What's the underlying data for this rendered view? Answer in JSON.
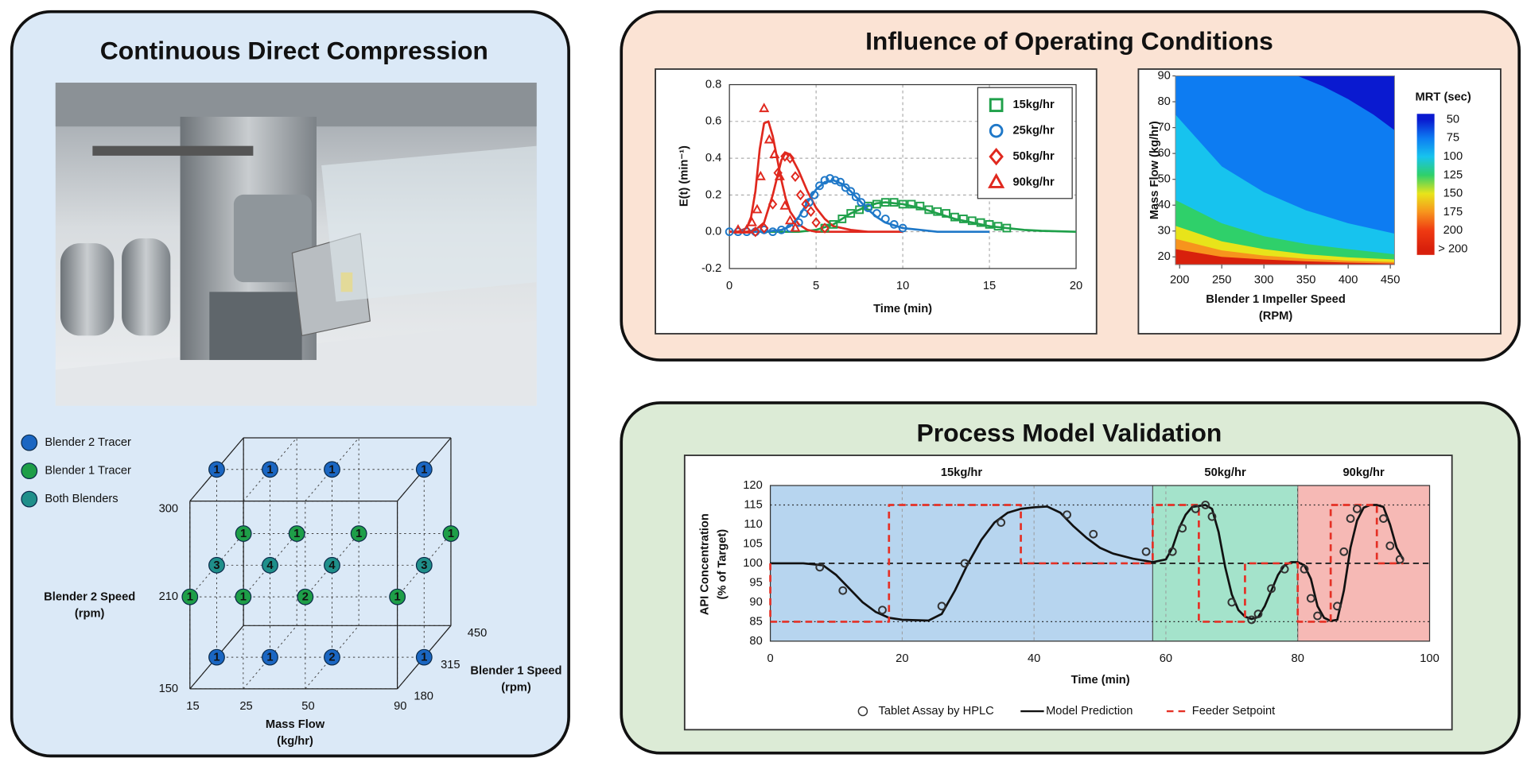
{
  "panels": {
    "left": {
      "title": "Continuous Direct Compression"
    },
    "top_right": {
      "title": "Influence of Operating Conditions"
    },
    "bottom_right": {
      "title": "Process Model Validation"
    }
  },
  "chart_data": [
    {
      "type": "scatter3d",
      "xlabel": [
        "Mass Flow",
        "(kg/hr)"
      ],
      "ylabel": [
        "Blender 2 Speed",
        "(rpm)"
      ],
      "zlabel": [
        "Blender 1 Speed",
        "(rpm)"
      ],
      "xticks": [
        15,
        25,
        50,
        90
      ],
      "yticks": [
        150,
        210,
        300
      ],
      "zticks": [
        180,
        315,
        450
      ],
      "series": [
        {
          "name": "Blender 2 Tracer",
          "color": "#1a66c2",
          "x": [
            15,
            25,
            50,
            90,
            15,
            25,
            50,
            90
          ],
          "y": [
            300,
            300,
            300,
            300,
            150,
            150,
            150,
            150
          ],
          "z": [
            315,
            315,
            315,
            315,
            315,
            315,
            315,
            315
          ],
          "values": [
            1,
            1,
            1,
            1,
            1,
            1,
            2,
            1
          ]
        },
        {
          "name": "Blender 1 Tracer",
          "color": "#1e9e48",
          "x": [
            15,
            25,
            50,
            90,
            15,
            25,
            50,
            90
          ],
          "y": [
            210,
            210,
            210,
            210,
            210,
            210,
            210,
            210
          ],
          "z": [
            450,
            450,
            450,
            450,
            180,
            180,
            180,
            180
          ],
          "values": [
            1,
            1,
            1,
            1,
            1,
            1,
            2,
            1
          ]
        },
        {
          "name": "Both Blenders",
          "color": "#1f8f8a",
          "x": [
            15,
            25,
            50,
            90
          ],
          "y": [
            210,
            210,
            210,
            210
          ],
          "z": [
            315,
            315,
            315,
            315
          ],
          "values": [
            3,
            4,
            4,
            3
          ]
        }
      ]
    },
    {
      "type": "line",
      "xlabel": "Time (min)",
      "ylabel": "E(t) (min⁻¹)",
      "xlim": [
        0,
        20
      ],
      "xticks": [
        0,
        5,
        10,
        15,
        20
      ],
      "ylim": [
        -0.2,
        0.8
      ],
      "yticks": [
        -0.2,
        {
          "value": 0,
          "label": "0.0"
        },
        0.2,
        0.4,
        0.6,
        0.8
      ],
      "grid": true,
      "legend": "top-right",
      "series": [
        {
          "name": "15kg/hr",
          "color": "#1fa04a",
          "marker": "square",
          "line": "none",
          "x": [
            5.5,
            6,
            6.5,
            7,
            7.5,
            8,
            8.5,
            9,
            9.5,
            10,
            10.5,
            11,
            11.5,
            12,
            12.5,
            13,
            13.5,
            14,
            14.5,
            15,
            15.5,
            16
          ],
          "values": [
            0.02,
            0.04,
            0.07,
            0.1,
            0.12,
            0.14,
            0.15,
            0.16,
            0.16,
            0.15,
            0.15,
            0.14,
            0.12,
            0.11,
            0.1,
            0.08,
            0.07,
            0.06,
            0.05,
            0.04,
            0.03,
            0.02
          ]
        },
        {
          "name": "25kg/hr",
          "color": "#1f78c8",
          "marker": "circle",
          "line": "none",
          "x": [
            0,
            0.5,
            1,
            1.5,
            2,
            2.5,
            3,
            3.5,
            4,
            4.3,
            4.6,
            4.9,
            5.2,
            5.5,
            5.8,
            6.1,
            6.4,
            6.7,
            7,
            7.3,
            7.6,
            8,
            8.5,
            9,
            9.5,
            10
          ],
          "values": [
            0,
            0,
            0,
            0,
            0.01,
            0,
            0.01,
            0.02,
            0.05,
            0.1,
            0.16,
            0.2,
            0.25,
            0.28,
            0.29,
            0.28,
            0.27,
            0.24,
            0.22,
            0.19,
            0.16,
            0.13,
            0.1,
            0.07,
            0.04,
            0.02
          ]
        },
        {
          "name": "50kg/hr",
          "color": "#e0281e",
          "marker": "diamond",
          "line": "none",
          "x": [
            1.5,
            2,
            2.5,
            2.8,
            3.2,
            3.5,
            3.8,
            4.1,
            4.4,
            4.7,
            5,
            5.5
          ],
          "values": [
            0,
            0.02,
            0.15,
            0.32,
            0.41,
            0.4,
            0.3,
            0.2,
            0.15,
            0.11,
            0.05,
            0.02
          ]
        },
        {
          "name": "90kg/hr",
          "color": "#e0281e",
          "marker": "triangle",
          "line": "none",
          "x": [
            0.5,
            1,
            1.3,
            1.6,
            1.8,
            2,
            2.3,
            2.6,
            2.9,
            3.2,
            3.5,
            3.8
          ],
          "values": [
            0.01,
            0.01,
            0.05,
            0.12,
            0.3,
            0.67,
            0.5,
            0.42,
            0.3,
            0.14,
            0.06,
            0.02
          ]
        },
        {
          "color": "#1fa04a",
          "marker": "none",
          "line": "solid",
          "x": [
            0,
            4,
            5,
            6,
            7,
            8,
            8.5,
            9,
            10,
            11,
            12,
            13,
            14,
            15,
            16,
            17,
            18,
            20
          ],
          "values": [
            0,
            0,
            0.01,
            0.04,
            0.1,
            0.14,
            0.155,
            0.16,
            0.15,
            0.13,
            0.1,
            0.07,
            0.05,
            0.03,
            0.02,
            0.01,
            0.005,
            0
          ]
        },
        {
          "color": "#1f78c8",
          "marker": "none",
          "line": "solid",
          "x": [
            0,
            2,
            3,
            3.5,
            4,
            4.5,
            5,
            5.5,
            6,
            6.5,
            7,
            7.5,
            8,
            8.5,
            9,
            10,
            11,
            12,
            15
          ],
          "values": [
            0,
            0,
            0.01,
            0.03,
            0.08,
            0.16,
            0.23,
            0.27,
            0.28,
            0.26,
            0.22,
            0.17,
            0.12,
            0.08,
            0.05,
            0.02,
            0.01,
            0,
            0
          ]
        },
        {
          "color": "#e0281e",
          "marker": "none",
          "line": "solid",
          "x": [
            0,
            1,
            1.5,
            2,
            2.5,
            3,
            3.25,
            3.5,
            4,
            4.5,
            5,
            5.5,
            6,
            7,
            8,
            10
          ],
          "values": [
            0,
            0,
            0.01,
            0.05,
            0.2,
            0.39,
            0.43,
            0.42,
            0.33,
            0.22,
            0.13,
            0.07,
            0.03,
            0.01,
            0,
            0
          ]
        },
        {
          "color": "#e0281e",
          "marker": "none",
          "line": "solid",
          "x": [
            0,
            0.5,
            1,
            1.25,
            1.5,
            1.75,
            2,
            2.25,
            2.5,
            2.75,
            3,
            3.25,
            3.5,
            4,
            4.5,
            5,
            10
          ],
          "values": [
            0,
            0,
            0.02,
            0.08,
            0.22,
            0.45,
            0.59,
            0.6,
            0.52,
            0.4,
            0.28,
            0.18,
            0.11,
            0.04,
            0.01,
            0,
            0
          ]
        }
      ]
    },
    {
      "type": "contour",
      "xlabel": [
        "Blender 1 Impeller Speed",
        "(RPM)"
      ],
      "ylabel": "Mass Flow (kg/hr)",
      "xlim": [
        195,
        455
      ],
      "xticks": [
        200,
        250,
        300,
        350,
        400,
        450
      ],
      "ylim": [
        17,
        90
      ],
      "yticks": [
        20,
        30,
        40,
        50,
        60,
        70,
        80,
        90
      ],
      "colorbar": {
        "title": "MRT (sec)",
        "ticks": [
          50,
          75,
          100,
          125,
          150,
          175,
          200,
          {
            "value": 225,
            "label": "> 200"
          }
        ],
        "colors": [
          "#0a1ad0",
          "#0d7cf2",
          "#17c3ee",
          "#2fd06a",
          "#e8e41a",
          "#f7941d",
          "#ef3a12",
          "#d8200c"
        ]
      },
      "contours": [
        {
          "level": 200,
          "x": [
            195,
            250,
            300,
            350,
            400,
            455
          ],
          "y": [
            23,
            20,
            19,
            18.3,
            17.8,
            17.4
          ]
        },
        {
          "level": 175,
          "x": [
            195,
            250,
            300,
            350,
            400,
            455
          ],
          "y": [
            27,
            22.5,
            20.5,
            19.3,
            18.5,
            18
          ]
        },
        {
          "level": 150,
          "x": [
            195,
            250,
            300,
            350,
            400,
            455
          ],
          "y": [
            32,
            26,
            23,
            21,
            19.8,
            19
          ]
        },
        {
          "level": 125,
          "x": [
            195,
            250,
            300,
            350,
            400,
            455
          ],
          "y": [
            42,
            33,
            28,
            25,
            23,
            21
          ]
        },
        {
          "level": 100,
          "x": [
            195,
            250,
            300,
            350,
            400,
            455
          ],
          "y": [
            75,
            55,
            45,
            38,
            33,
            29
          ]
        },
        {
          "level": 75,
          "x": [
            340,
            370,
            400,
            430,
            455
          ],
          "y": [
            90,
            86,
            81,
            75,
            69
          ]
        }
      ]
    },
    {
      "type": "line",
      "xlabel": "Time (min)",
      "ylabel": [
        "API Concentration",
        "(% of Target)"
      ],
      "xlim": [
        0,
        100
      ],
      "xticks": [
        0,
        20,
        40,
        60,
        80,
        100
      ],
      "ylim": [
        80,
        120
      ],
      "yticks": [
        80,
        85,
        90,
        95,
        100,
        105,
        110,
        115,
        120
      ],
      "grid": "x",
      "legend": "bottom",
      "regions": [
        {
          "label": "15kg/hr",
          "from": 0,
          "to": 58,
          "color": "#b7d5ef"
        },
        {
          "label": "50kg/hr",
          "from": 58,
          "to": 80,
          "color": "#a4e3cb"
        },
        {
          "label": "90kg/hr",
          "from": 80,
          "to": 100,
          "color": "#f6b9b5"
        }
      ],
      "hlines": [
        {
          "value": 85,
          "style": "dotted"
        },
        {
          "value": 100,
          "style": "dashed"
        },
        {
          "value": 115,
          "style": "dotted"
        }
      ],
      "series": [
        {
          "name": "Tablet Assay by HPLC",
          "color": "#333333",
          "marker": "circle",
          "line": "none",
          "x": [
            7.5,
            11,
            17,
            26,
            29.5,
            35,
            45,
            49,
            57,
            61,
            62.5,
            64.5,
            66,
            67,
            70,
            73,
            74,
            76,
            78,
            81,
            82,
            83,
            86,
            87,
            88,
            89,
            93,
            94,
            95.5
          ],
          "values": [
            99,
            93,
            88,
            89,
            100,
            110.5,
            112.5,
            107.5,
            103,
            103,
            109,
            114,
            115,
            112,
            90,
            85.5,
            87,
            93.5,
            98.5,
            98.5,
            91,
            86.5,
            89,
            103,
            111.5,
            114,
            111.5,
            104.5,
            101
          ]
        },
        {
          "name": "Model Prediction",
          "color": "#111111",
          "marker": "none",
          "line": "solid",
          "x": [
            0,
            5,
            8,
            10,
            12,
            14,
            16,
            18,
            20,
            24,
            26,
            28,
            30,
            32,
            34,
            36,
            38,
            40,
            42,
            44,
            46,
            48,
            50,
            52,
            55,
            58,
            60,
            61,
            62,
            63,
            64,
            66,
            67,
            68,
            69,
            70,
            71,
            72,
            73,
            74,
            75,
            76,
            77,
            78,
            79,
            80,
            81,
            82,
            83,
            84,
            85,
            86,
            87,
            88,
            89,
            90,
            91,
            92,
            93,
            94,
            95,
            96
          ],
          "values": [
            100,
            100,
            99.5,
            97,
            93.5,
            90,
            87.5,
            86,
            85.5,
            85.3,
            87,
            93,
            100,
            106,
            110.5,
            113,
            114,
            114.4,
            114.6,
            113,
            109.5,
            106.5,
            104,
            102.5,
            101.2,
            100.3,
            101,
            104,
            109,
            112.5,
            114.5,
            115,
            114,
            108,
            99,
            92,
            88,
            86.3,
            85.7,
            86.2,
            89,
            93,
            97,
            99.5,
            100.3,
            100.3,
            99.5,
            96,
            89,
            86,
            85.2,
            85.5,
            93,
            104,
            111,
            114.3,
            115,
            115,
            114.5,
            110,
            104,
            101
          ]
        },
        {
          "name": "Feeder Setpoint",
          "color": "#e53025",
          "marker": "none",
          "line": "dashed",
          "x": [
            0,
            0,
            18,
            18,
            38,
            38,
            58,
            58,
            65,
            65,
            72,
            72,
            80,
            80,
            85,
            85,
            92,
            92,
            96
          ],
          "values": [
            100,
            85,
            85,
            115,
            115,
            100,
            100,
            115,
            115,
            85,
            85,
            100,
            100,
            85,
            85,
            115,
            115,
            100,
            100
          ]
        }
      ]
    }
  ]
}
